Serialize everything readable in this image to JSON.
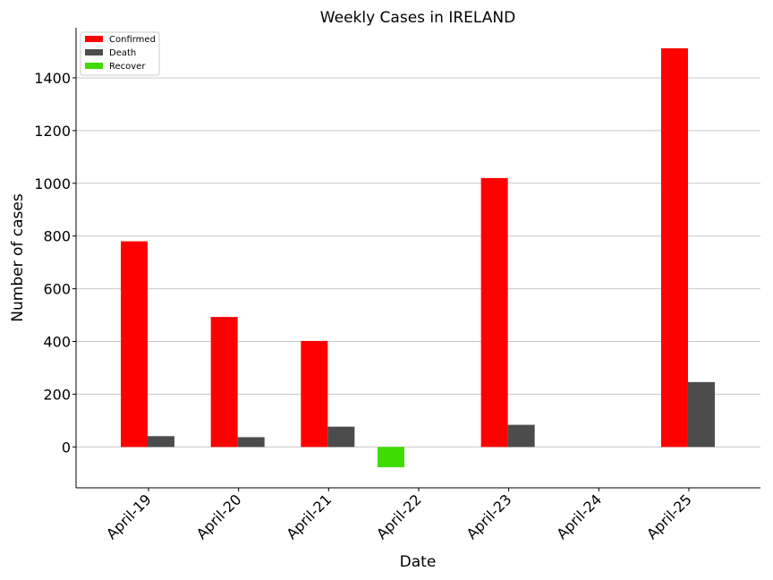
{
  "chart_data": {
    "type": "bar",
    "title": "Weekly Cases in IRELAND",
    "xlabel": "Date",
    "ylabel": "Number of cases",
    "categories": [
      "April-19",
      "April-20",
      "April-21",
      "April-22",
      "April-23",
      "April-24",
      "April-25"
    ],
    "series": [
      {
        "name": "Confirmed",
        "color": "#ff0000",
        "values": [
          780,
          493,
          402,
          0,
          1020,
          0,
          1512
        ]
      },
      {
        "name": "Death",
        "color": "#4c4c4c",
        "values": [
          41,
          37,
          77,
          0,
          84,
          0,
          246
        ]
      },
      {
        "name": "Recover",
        "color": "#3fdc00",
        "values": [
          0,
          0,
          0,
          -77,
          0,
          0,
          0
        ]
      }
    ],
    "ylim": [
      -155,
      1590
    ],
    "yticks": [
      0,
      200,
      400,
      600,
      800,
      1000,
      1200,
      1400
    ],
    "grid": "y",
    "legend_position": "top-left"
  }
}
